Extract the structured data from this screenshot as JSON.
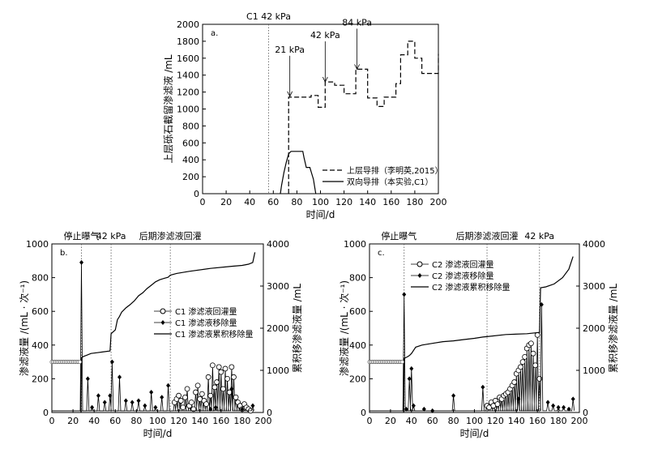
{
  "chart_data": [
    {
      "type": "line",
      "panel_label": "a.",
      "xlabel": "时间/d",
      "ylabel": "上层砾石截留渗滤液 /mL",
      "xlim": [
        0,
        200
      ],
      "ylim": [
        0,
        2000
      ],
      "xticks": [
        0,
        20,
        40,
        60,
        80,
        100,
        120,
        140,
        160,
        180,
        200
      ],
      "yticks": [
        0,
        200,
        400,
        600,
        800,
        1000,
        1200,
        1400,
        1600,
        1800,
        2000
      ],
      "top_annotations": [
        {
          "text": "C1 42 kPa",
          "x": 56
        }
      ],
      "arrow_annotations": [
        {
          "text": "21 kPa",
          "x": 74,
          "y": 1150
        },
        {
          "text": "42 kPa",
          "x": 104,
          "y": 1320
        },
        {
          "text": "84 kPa",
          "x": 131,
          "y": 1470
        }
      ],
      "series": [
        {
          "name": "上层导排（李明英,2015）",
          "style": "dashed",
          "x": [
            73,
            73,
            74,
            92,
            92,
            98,
            98,
            104,
            104,
            112,
            112,
            120,
            120,
            130,
            130,
            132,
            132,
            140,
            140,
            148,
            148,
            154,
            154,
            164,
            164,
            168,
            168,
            174,
            174,
            180,
            180,
            186,
            186,
            194,
            194,
            200,
            200
          ],
          "y": [
            0,
            1140,
            1140,
            1140,
            1160,
            1160,
            1020,
            1020,
            1320,
            1320,
            1280,
            1280,
            1180,
            1180,
            1470,
            1470,
            1470,
            1470,
            1130,
            1130,
            1030,
            1030,
            1140,
            1140,
            1300,
            1300,
            1640,
            1640,
            1800,
            1800,
            1600,
            1600,
            1420,
            1420,
            1420,
            1420,
            1650
          ]
        },
        {
          "name": "双向导排（本实验,C1）",
          "style": "solid",
          "x": [
            66,
            67,
            69,
            71,
            73,
            75,
            85,
            86,
            88,
            91,
            94,
            96
          ],
          "y": [
            0,
            100,
            250,
            370,
            470,
            500,
            500,
            430,
            310,
            310,
            170,
            0
          ]
        }
      ]
    },
    {
      "type": "line",
      "panel_label": "b.",
      "xlabel": "时间/d",
      "ylabel": "渗滤液量 /(mL · 次⁻¹)",
      "ylabel_right": "累积移渗滤液量 /mL",
      "xlim": [
        0,
        200
      ],
      "ylim": [
        0,
        1000
      ],
      "ylim_right": [
        0,
        4000
      ],
      "xticks": [
        0,
        20,
        40,
        60,
        80,
        100,
        120,
        140,
        160,
        180,
        200
      ],
      "yticks": [
        0,
        200,
        400,
        600,
        800,
        1000
      ],
      "yticks_right": [
        0,
        1000,
        2000,
        3000,
        4000
      ],
      "top_annotations": [
        {
          "text": "停止曝气",
          "x": 28
        },
        {
          "text": "42 kPa",
          "x": 56
        },
        {
          "text": "后期渗滤液回灌",
          "x": 112
        }
      ],
      "event_lines": [
        28,
        56,
        112
      ],
      "series": [
        {
          "name": "C1 渗滤液回灌量",
          "marker": "open-circle",
          "x": [
            116,
            118,
            120,
            122,
            124,
            126,
            128,
            130,
            132,
            134,
            136,
            138,
            140,
            142,
            144,
            146,
            148,
            150,
            152,
            154,
            156,
            158,
            160,
            162,
            164,
            166,
            168,
            170,
            172,
            174,
            176,
            178,
            180,
            182,
            184,
            186,
            188
          ],
          "y": [
            60,
            80,
            100,
            70,
            30,
            90,
            140,
            40,
            60,
            20,
            120,
            160,
            80,
            110,
            70,
            50,
            210,
            100,
            280,
            150,
            180,
            270,
            240,
            140,
            260,
            200,
            120,
            270,
            210,
            90,
            60,
            40,
            20,
            50,
            30,
            20,
            10
          ]
        },
        {
          "name": "C1 渗滤液移除量",
          "marker": "filled-diamond",
          "x": [
            28,
            34,
            38,
            44,
            50,
            55,
            57,
            64,
            70,
            76,
            82,
            88,
            94,
            98,
            104,
            110,
            150,
            155,
            170,
            180,
            190
          ],
          "y": [
            890,
            200,
            30,
            100,
            60,
            100,
            300,
            210,
            70,
            60,
            70,
            40,
            120,
            30,
            90,
            160,
            20,
            30,
            140,
            20,
            40
          ]
        },
        {
          "name": "C1 渗滤液累积移除量",
          "style": "solid",
          "axis": "right",
          "x": [
            27.5,
            28,
            30,
            33,
            37,
            43,
            49,
            55,
            56,
            60,
            62,
            64,
            66,
            70,
            74,
            78,
            82,
            86,
            90,
            94,
            98,
            102,
            106,
            110,
            112,
            118,
            130,
            150,
            170,
            180,
            186,
            190,
            192
          ],
          "y": [
            0,
            1300,
            1330,
            1360,
            1400,
            1420,
            1440,
            1460,
            1870,
            1960,
            2200,
            2280,
            2380,
            2480,
            2560,
            2650,
            2770,
            2840,
            2940,
            3020,
            3100,
            3150,
            3180,
            3210,
            3260,
            3300,
            3350,
            3420,
            3470,
            3490,
            3520,
            3560,
            3800
          ]
        }
      ]
    },
    {
      "type": "line",
      "panel_label": "c.",
      "xlabel": "时间/d",
      "ylabel": "渗滤液量 /(mL · 次⁻¹)",
      "ylabel_right": "累积移渗滤液量 /mL",
      "xlim": [
        0,
        200
      ],
      "ylim": [
        0,
        1000
      ],
      "ylim_right": [
        0,
        4000
      ],
      "xticks": [
        0,
        20,
        40,
        60,
        80,
        100,
        120,
        140,
        160,
        180,
        200
      ],
      "yticks": [
        0,
        200,
        400,
        600,
        800,
        1000
      ],
      "yticks_right": [
        0,
        1000,
        2000,
        3000,
        4000
      ],
      "top_annotations": [
        {
          "text": "停止曝气",
          "x": 28
        },
        {
          "text": "后期渗滤液回灌",
          "x": 112
        },
        {
          "text": "42 kPa",
          "x": 162
        }
      ],
      "event_lines": [
        33,
        112,
        162
      ],
      "series": [
        {
          "name": "C2 渗滤液回灌量",
          "marker": "open-circle",
          "x": [
            112,
            114,
            116,
            118,
            120,
            122,
            124,
            126,
            128,
            130,
            132,
            134,
            136,
            138,
            140,
            142,
            144,
            146,
            148,
            150,
            152,
            154,
            156,
            158,
            160,
            162
          ],
          "y": [
            40,
            30,
            60,
            40,
            70,
            50,
            90,
            80,
            100,
            110,
            120,
            140,
            160,
            180,
            230,
            250,
            270,
            300,
            330,
            380,
            400,
            410,
            350,
            280,
            460,
            200
          ]
        },
        {
          "name": "C2 渗滤液移除量",
          "marker": "filled-diamond",
          "x": [
            33,
            35,
            38,
            40,
            42,
            52,
            60,
            80,
            108,
            142,
            164,
            170,
            175,
            180,
            185,
            190,
            194
          ],
          "y": [
            700,
            20,
            200,
            260,
            40,
            20,
            10,
            100,
            150,
            80,
            640,
            60,
            40,
            30,
            30,
            20,
            80
          ]
        },
        {
          "name": "C2 渗滤液累积移除量",
          "style": "solid",
          "axis": "right",
          "x": [
            32.5,
            33,
            36,
            38,
            40,
            44,
            50,
            60,
            70,
            80,
            90,
            100,
            108,
            112,
            130,
            150,
            162,
            163,
            168,
            176,
            184,
            190,
            194
          ],
          "y": [
            0,
            1280,
            1320,
            1350,
            1400,
            1550,
            1600,
            1640,
            1680,
            1700,
            1730,
            1760,
            1790,
            1800,
            1850,
            1870,
            1900,
            2960,
            2980,
            3050,
            3200,
            3400,
            3700
          ]
        }
      ]
    }
  ]
}
